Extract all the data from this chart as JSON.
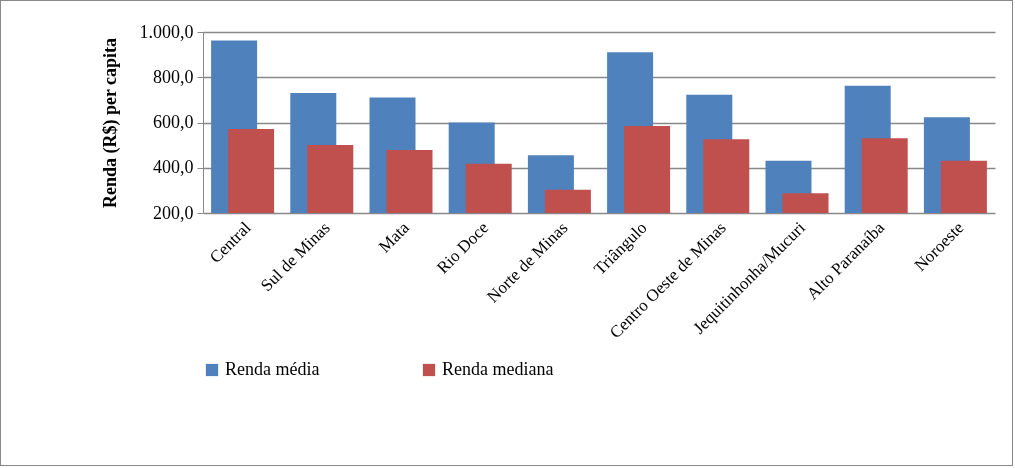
{
  "chart_data": {
    "type": "bar",
    "ylabel": "Renda (R$) per capita",
    "categories": [
      "Central",
      "Sul de Minas",
      "Mata",
      "Rio Doce",
      "Norte de Minas",
      "Triângulo",
      "Centro Oeste de Minas",
      "Jequitinhonha/Mucuri",
      "Alto Paranaíba",
      "Noroeste"
    ],
    "series": [
      {
        "name": "Renda média",
        "color": "#4f81bd",
        "values": [
          962,
          730,
          711,
          600,
          455,
          910,
          723,
          431,
          762,
          623
        ]
      },
      {
        "name": "Renda mediana",
        "color": "#c0504d",
        "values": [
          571,
          501,
          479,
          418,
          303,
          585,
          526,
          287,
          530,
          431
        ]
      }
    ],
    "ylim": [
      200,
      1000
    ],
    "yticks": [
      {
        "value": 200,
        "label": "200,0"
      },
      {
        "value": 400,
        "label": "400,0"
      },
      {
        "value": 600,
        "label": "600,0"
      },
      {
        "value": 800,
        "label": "800,0"
      },
      {
        "value": 1000,
        "label": "1.000,0"
      }
    ],
    "grid": "y",
    "legend": "bottom"
  }
}
